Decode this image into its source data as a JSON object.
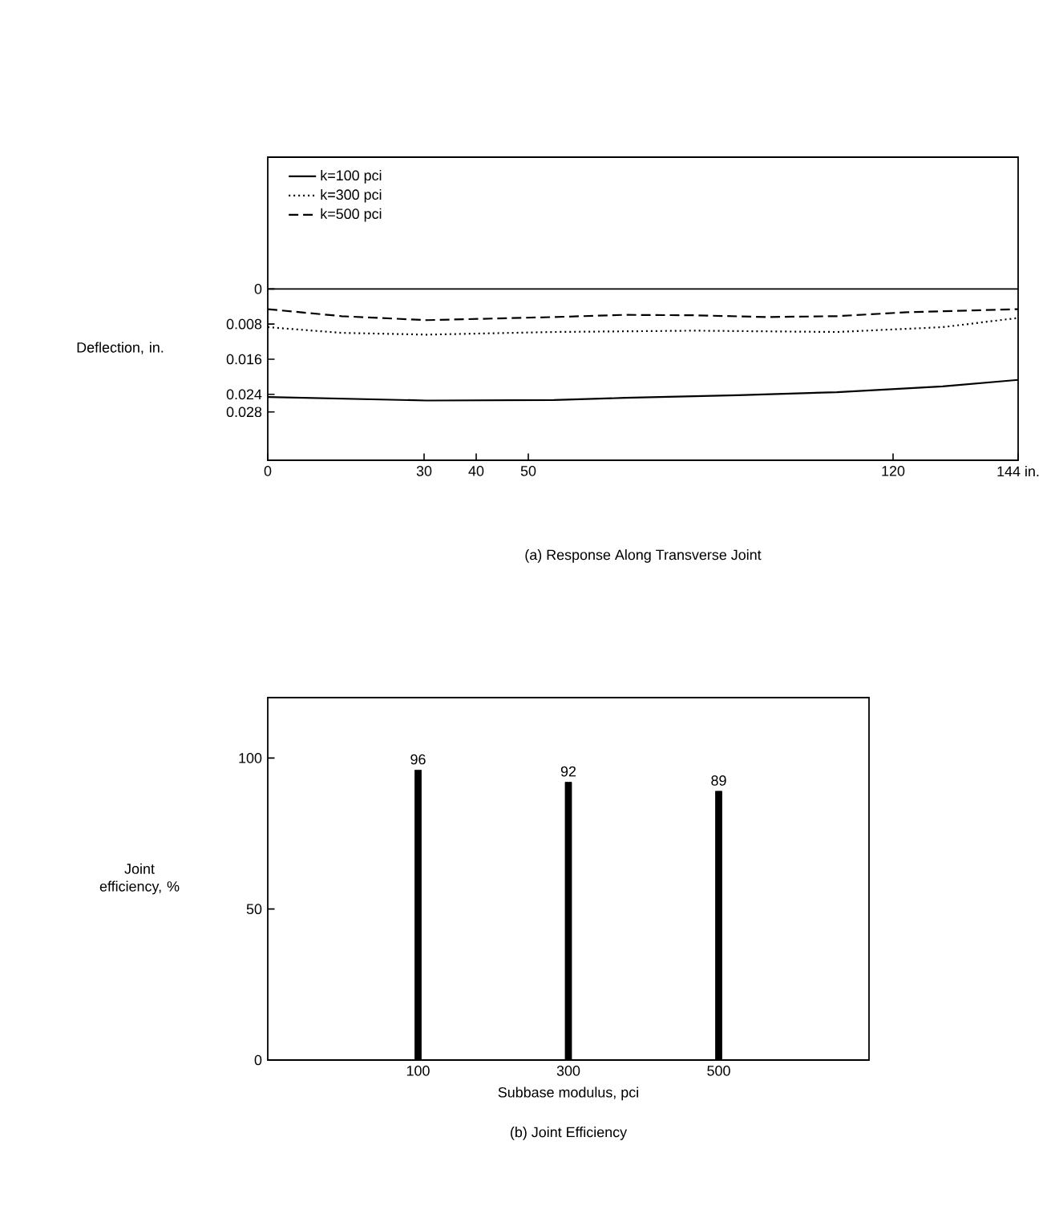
{
  "chart_data": [
    {
      "type": "line",
      "title": "(a) Response Along Transverse Joint",
      "ylabel": "Deflection, in.",
      "xlim": [
        0,
        144
      ],
      "xticks": [
        0,
        30,
        40,
        50,
        120,
        {
          "value": 144,
          "label": "144 in."
        }
      ],
      "ylim": [
        0.039,
        -0.03
      ],
      "yticks": [
        0,
        0.008,
        0.016,
        0.024,
        0.028
      ],
      "legend": "top left",
      "ref_lines": [
        {
          "axis": "y",
          "value": 0
        }
      ],
      "series": [
        {
          "name": "k=100 pci",
          "color": "#000000",
          "line_style": "solid",
          "x": [
            0,
            30.5,
            54.9,
            68.5,
            90.2,
            109.2,
            129.5,
            144
          ],
          "values": [
            0.0246,
            0.0254,
            0.0253,
            0.0248,
            0.0242,
            0.0235,
            0.0222,
            0.0207
          ]
        },
        {
          "name": "k=300 pci",
          "color": "#000000",
          "line_style": "dotted",
          "x": [
            0,
            14.2,
            30.5,
            54.9,
            82.0,
            109.2,
            129.5,
            144
          ],
          "values": [
            0.0087,
            0.01,
            0.0104,
            0.0098,
            0.0095,
            0.0098,
            0.0087,
            0.0066
          ]
        },
        {
          "name": "k=500 pci",
          "color": "#000000",
          "line_style": "dashed",
          "x": [
            0,
            14.2,
            30.5,
            54.9,
            68.5,
            82.0,
            95.6,
            109.2,
            122.7,
            144
          ],
          "values": [
            0.0046,
            0.0062,
            0.0071,
            0.0064,
            0.0059,
            0.006,
            0.0064,
            0.0062,
            0.0053,
            0.0046
          ]
        }
      ]
    },
    {
      "type": "bar",
      "title": "(b) Joint Efficiency",
      "xlabel": "Subbase modulus, pci",
      "ylabel": "Joint efficiency, %",
      "categories": [
        "100",
        "300",
        "500"
      ],
      "values": [
        96,
        92,
        89
      ],
      "color": "#000000",
      "data_labels": true,
      "ylim": [
        0,
        120
      ],
      "yticks": [
        0,
        50,
        100
      ]
    }
  ]
}
